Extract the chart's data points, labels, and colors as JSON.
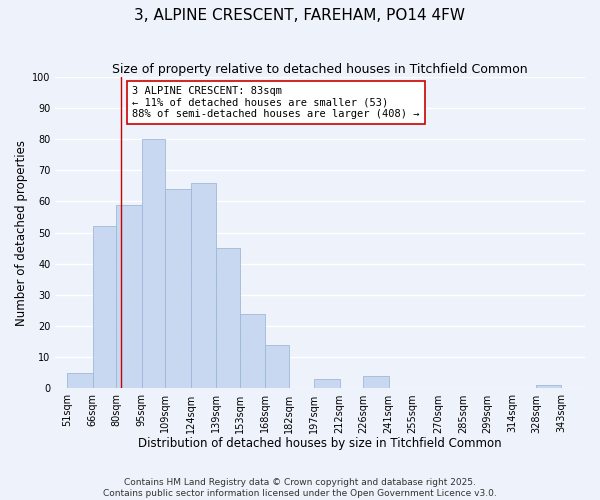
{
  "title": "3, ALPINE CRESCENT, FAREHAM, PO14 4FW",
  "subtitle": "Size of property relative to detached houses in Titchfield Common",
  "xlabel": "Distribution of detached houses by size in Titchfield Common",
  "ylabel": "Number of detached properties",
  "bin_edges": [
    51,
    66,
    80,
    95,
    109,
    124,
    139,
    153,
    168,
    182,
    197,
    212,
    226,
    241,
    255,
    270,
    285,
    299,
    314,
    328,
    343
  ],
  "bar_heights": [
    5,
    52,
    59,
    80,
    64,
    66,
    45,
    24,
    14,
    0,
    3,
    0,
    4,
    0,
    0,
    0,
    0,
    0,
    0,
    1
  ],
  "bar_color": "#c8d8f0",
  "bar_edgecolor": "#a0b8d8",
  "tick_labels": [
    "51sqm",
    "66sqm",
    "80sqm",
    "95sqm",
    "109sqm",
    "124sqm",
    "139sqm",
    "153sqm",
    "168sqm",
    "182sqm",
    "197sqm",
    "212sqm",
    "226sqm",
    "241sqm",
    "255sqm",
    "270sqm",
    "285sqm",
    "299sqm",
    "314sqm",
    "328sqm",
    "343sqm"
  ],
  "ylim": [
    0,
    100
  ],
  "xlim": [
    44,
    357
  ],
  "vline_x": 83,
  "vline_color": "#cc0000",
  "annotation_text": "3 ALPINE CRESCENT: 83sqm\n← 11% of detached houses are smaller (53)\n88% of semi-detached houses are larger (408) →",
  "annotation_box_color": "#ffffff",
  "annotation_box_edgecolor": "#cc0000",
  "footer_line1": "Contains HM Land Registry data © Crown copyright and database right 2025.",
  "footer_line2": "Contains public sector information licensed under the Open Government Licence v3.0.",
  "background_color": "#eef2fb",
  "grid_color": "#ffffff",
  "title_fontsize": 11,
  "subtitle_fontsize": 9,
  "axis_label_fontsize": 8.5,
  "tick_fontsize": 7,
  "annotation_fontsize": 7.5,
  "footer_fontsize": 6.5
}
